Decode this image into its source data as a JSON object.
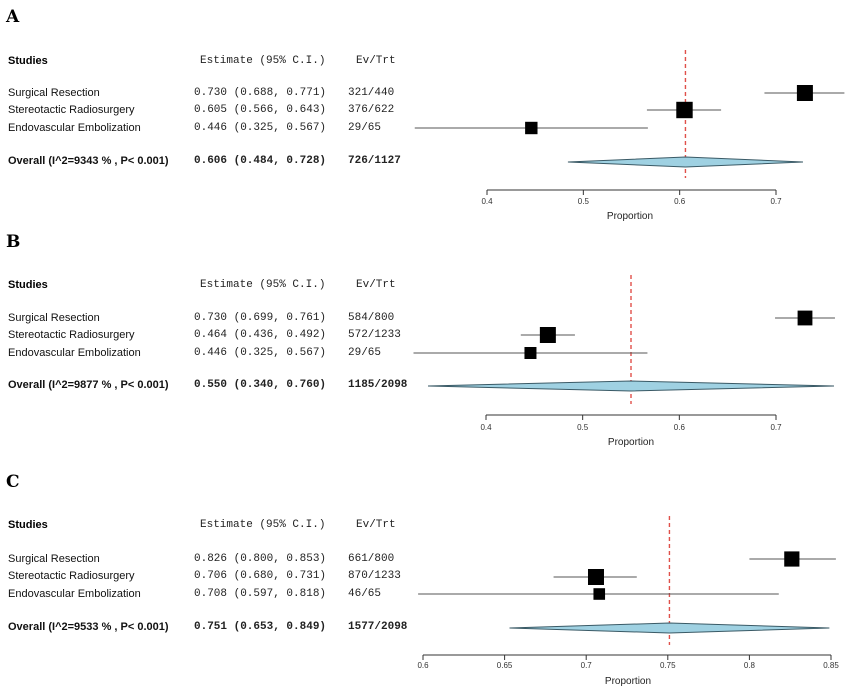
{
  "chart_data": [
    {
      "type": "forest",
      "panel_label": "A",
      "header": {
        "studies": "Studies",
        "estimate": "Estimate (95% C.I.)",
        "evtrt": "Ev/Trt"
      },
      "xlabel": "Proportion",
      "xticks": [
        0.4,
        0.5,
        0.6,
        0.7
      ],
      "xtick_labels": [
        "0.4",
        "0.5",
        "0.6",
        "0.7"
      ],
      "reference_line": 0.606,
      "studies": [
        {
          "name": "Surgical Resection",
          "estimate": 0.73,
          "lower": 0.688,
          "upper": 0.771,
          "estimate_text": "0.730 (0.688, 0.771)",
          "evtrt": "321/440",
          "weight": 1.0
        },
        {
          "name": "Stereotactic Radiosurgery",
          "estimate": 0.605,
          "lower": 0.566,
          "upper": 0.643,
          "estimate_text": "0.605 (0.566, 0.643)",
          "evtrt": "376/622",
          "weight": 1.05
        },
        {
          "name": "Endovascular Embolization",
          "estimate": 0.446,
          "lower": 0.325,
          "upper": 0.567,
          "estimate_text": "0.446 (0.325, 0.567)",
          "evtrt": "29/65",
          "weight": 0.55
        }
      ],
      "overall": {
        "name": "Overall (I^2=9343 % , P< 0.001)",
        "estimate": 0.606,
        "lower": 0.484,
        "upper": 0.728,
        "estimate_text": "0.606 (0.484, 0.728)",
        "evtrt": "726/1127"
      }
    },
    {
      "type": "forest",
      "panel_label": "B",
      "header": {
        "studies": "Studies",
        "estimate": "Estimate (95% C.I.)",
        "evtrt": "Ev/Trt"
      },
      "xlabel": "Proportion",
      "xticks": [
        0.4,
        0.5,
        0.6,
        0.7
      ],
      "xtick_labels": [
        "0.4",
        "0.5",
        "0.6",
        "0.7"
      ],
      "reference_line": 0.55,
      "studies": [
        {
          "name": "Surgical Resection",
          "estimate": 0.73,
          "lower": 0.699,
          "upper": 0.761,
          "estimate_text": "0.730 (0.699, 0.761)",
          "evtrt": "584/800",
          "weight": 0.85
        },
        {
          "name": "Stereotactic Radiosurgery",
          "estimate": 0.464,
          "lower": 0.436,
          "upper": 0.492,
          "estimate_text": "0.464 (0.436, 0.492)",
          "evtrt": "572/1233",
          "weight": 1.0
        },
        {
          "name": "Endovascular Embolization",
          "estimate": 0.446,
          "lower": 0.325,
          "upper": 0.567,
          "estimate_text": "0.446 (0.325, 0.567)",
          "evtrt": "29/65",
          "weight": 0.5
        }
      ],
      "overall": {
        "name": "Overall (I^2=9877 % , P< 0.001)",
        "estimate": 0.55,
        "lower": 0.34,
        "upper": 0.76,
        "estimate_text": "0.550 (0.340, 0.760)",
        "evtrt": "1185/2098"
      }
    },
    {
      "type": "forest",
      "panel_label": "C",
      "header": {
        "studies": "Studies",
        "estimate": "Estimate (95% C.I.)",
        "evtrt": "Ev/Trt"
      },
      "xlabel": "Proportion",
      "xticks": [
        0.6,
        0.65,
        0.7,
        0.75,
        0.8,
        0.85
      ],
      "xtick_labels": [
        "0.6",
        "0.65",
        "0.7",
        "0.75",
        "0.8",
        "0.85"
      ],
      "reference_line": 0.751,
      "studies": [
        {
          "name": "Surgical Resection",
          "estimate": 0.826,
          "lower": 0.8,
          "upper": 0.853,
          "estimate_text": "0.826 (0.800, 0.853)",
          "evtrt": "661/800",
          "weight": 0.9
        },
        {
          "name": "Stereotactic Radiosurgery",
          "estimate": 0.706,
          "lower": 0.68,
          "upper": 0.731,
          "estimate_text": "0.706 (0.680, 0.731)",
          "evtrt": "870/1233",
          "weight": 1.0
        },
        {
          "name": "Endovascular Embolization",
          "estimate": 0.708,
          "lower": 0.597,
          "upper": 0.818,
          "estimate_text": "0.708 (0.597, 0.818)",
          "evtrt": "46/65",
          "weight": 0.45
        }
      ],
      "overall": {
        "name": "Overall (I^2=9533 % , P< 0.001)",
        "estimate": 0.751,
        "lower": 0.653,
        "upper": 0.849,
        "estimate_text": "0.751 (0.653, 0.849)",
        "evtrt": "1577/2098"
      }
    }
  ],
  "colors": {
    "square": "#000000",
    "ci_line": "#555555",
    "diamond_fill": "#9fd1e2",
    "diamond_stroke": "#3a5a66",
    "ref_line": "#e0504a",
    "axis": "#333333"
  }
}
